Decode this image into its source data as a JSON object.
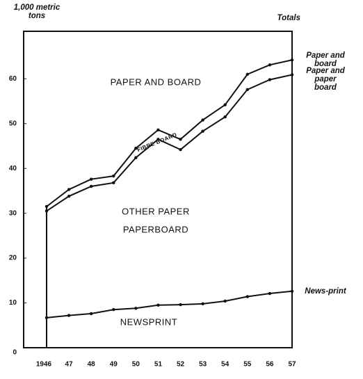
{
  "chart_data": {
    "type": "line",
    "y_label": "1,000 metric tons",
    "right_label": "Totals",
    "categories": [
      "1946",
      "47",
      "48",
      "49",
      "50",
      "51",
      "52",
      "53",
      "54",
      "55",
      "56",
      "57"
    ],
    "series": [
      {
        "name": "Paper and board",
        "color": "#111111",
        "values": [
          31.5,
          35.3,
          37.6,
          38.3,
          44.5,
          48.6,
          46.5,
          50.8,
          54.2,
          61.0,
          63.1,
          64.2
        ]
      },
      {
        "name": "Paper and paper board",
        "color": "#111111",
        "values": [
          30.5,
          33.8,
          36.0,
          36.8,
          42.4,
          46.5,
          44.2,
          48.3,
          51.5,
          57.6,
          59.8,
          60.9
        ]
      },
      {
        "name": "News-print",
        "color": "#111111",
        "values": [
          6.7,
          7.2,
          7.6,
          8.5,
          8.8,
          9.5,
          9.6,
          9.8,
          10.4,
          11.4,
          12.1,
          12.6
        ]
      }
    ],
    "annotations": [
      "PAPER AND BOARD",
      "FIBRE BOARD",
      "OTHER PAPER",
      "PAPERBOARD",
      "NEWSPRINT"
    ],
    "ylim": [
      0,
      70.6
    ],
    "yticks": [
      0,
      10,
      20,
      30,
      40,
      50,
      60
    ]
  }
}
